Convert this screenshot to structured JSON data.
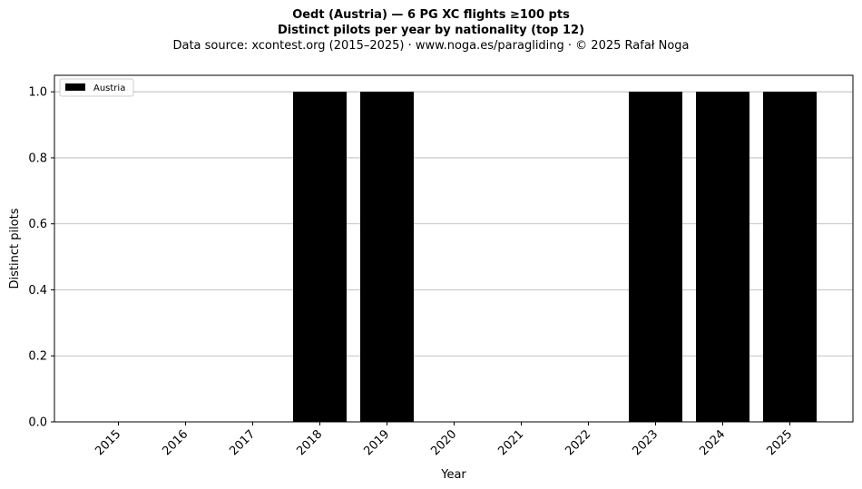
{
  "header": {
    "title": "Oedt (Austria)  —  6 PG XC flights ≥100 pts",
    "subtitle": "Distinct pilots per year by nationality (top 12)",
    "source": "Data source: xcontest.org (2015–2025)  ·  www.noga.es/paragliding  ·  © 2025 Rafał Noga"
  },
  "chart_data": {
    "type": "bar",
    "title": "Oedt (Austria)  —  6 PG XC flights ≥100 pts",
    "subtitle": "Distinct pilots per year by nationality (top 12)",
    "xlabel": "Year",
    "ylabel": "Distinct pilots",
    "categories": [
      "2015",
      "2016",
      "2017",
      "2018",
      "2019",
      "2020",
      "2021",
      "2022",
      "2023",
      "2024",
      "2025"
    ],
    "series": [
      {
        "name": "Austria",
        "color": "#000000",
        "values": [
          0,
          0,
          0,
          1,
          1,
          0,
          0,
          0,
          1,
          1,
          1
        ]
      }
    ],
    "ylim": [
      0,
      1.05
    ],
    "yticks": [
      "0.0",
      "0.2",
      "0.4",
      "0.6",
      "0.8",
      "1.0"
    ],
    "grid": "horizontal",
    "legend": "top-left"
  }
}
